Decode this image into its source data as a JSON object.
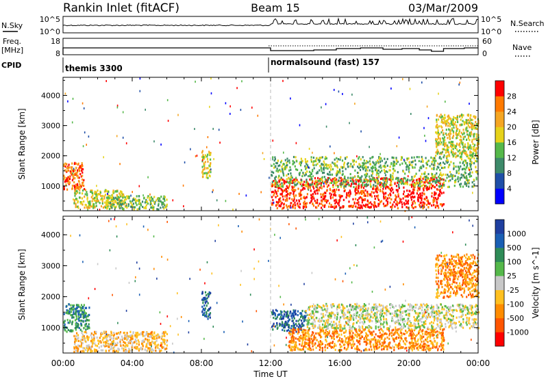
{
  "header": {
    "station": "Rankin Inlet (fitACF)",
    "beam": "Beam 15",
    "date": "03/Mar/2009"
  },
  "top_panels": {
    "nsky_label": "N.Sky",
    "nsky_ticks": [
      "10^5",
      "10^0"
    ],
    "nsearch_label": "N.Search",
    "nsearch_ticks": [
      "10^5",
      "10^0"
    ],
    "freq_label": "Freq.",
    "freq_unit": "[MHz]",
    "freq_ticks": [
      "18",
      "8"
    ],
    "nave_label": "Nave",
    "nave_ticks": [
      "60",
      "0"
    ],
    "cpid_label": "CPID",
    "cpid_modes": [
      {
        "label": "themis 3300",
        "start_hour": 0
      },
      {
        "label": "normalsound (fast) 157",
        "start_hour": 12
      }
    ]
  },
  "colors": {
    "power_scale": [
      "#0000ff",
      "#1f4fa8",
      "#3d8a6a",
      "#55b84a",
      "#e6d21a",
      "#f5a623",
      "#ff7a00",
      "#ff0000"
    ],
    "velocity_scale": [
      "#ff0000",
      "#ff5500",
      "#ff8c00",
      "#ffc020",
      "#c8c8c8",
      "#55b84a",
      "#2e8b57",
      "#1a5fb4",
      "#1f3fa0"
    ]
  },
  "chart_data": [
    {
      "type": "heatmap",
      "name_hint": "power",
      "xlabel": "",
      "ylabel": "Slant Range [km]",
      "x_range_hours": [
        0,
        24
      ],
      "ylim": [
        180,
        4600
      ],
      "y_ticks": [
        1000,
        2000,
        3000,
        4000
      ],
      "x_tick_labels": [
        "00:00",
        "04:00",
        "08:00",
        "12:00",
        "16:00",
        "20:00",
        "00:00"
      ],
      "colorbar_label": "Power [dB]",
      "colorbar_ticks": [
        "28",
        "24",
        "20",
        "16",
        "12",
        "8",
        "4"
      ],
      "echo_regions": [
        {
          "t0": 0.0,
          "t1": 1.2,
          "r0": 900,
          "r1": 1800,
          "level": 6
        },
        {
          "t0": 0.6,
          "t1": 3.5,
          "r0": 300,
          "r1": 900,
          "level": 4
        },
        {
          "t0": 2.5,
          "t1": 6.0,
          "r0": 250,
          "r1": 700,
          "level": 3
        },
        {
          "t0": 8.0,
          "t1": 8.5,
          "r0": 1300,
          "r1": 2200,
          "level": 4
        },
        {
          "t0": 12.0,
          "t1": 22.0,
          "r0": 300,
          "r1": 1300,
          "level": 7
        },
        {
          "t0": 12.0,
          "t1": 24.0,
          "r0": 1000,
          "r1": 2000,
          "level": 3
        },
        {
          "t0": 21.5,
          "t1": 24.0,
          "r0": 2000,
          "r1": 3400,
          "level": 4
        }
      ]
    },
    {
      "type": "heatmap",
      "name_hint": "velocity",
      "xlabel": "Time UT",
      "ylabel": "Slant Range [km]",
      "x_range_hours": [
        0,
        24
      ],
      "ylim": [
        180,
        4600
      ],
      "y_ticks": [
        1000,
        2000,
        3000,
        4000
      ],
      "x_tick_labels": [
        "00:00",
        "04:00",
        "08:00",
        "12:00",
        "16:00",
        "20:00",
        "00:00"
      ],
      "colorbar_label": "Velocity [m s^-1]",
      "colorbar_ticks": [
        "1000",
        "500",
        "100",
        "25",
        "-25",
        "-100",
        "-500",
        "-1000"
      ],
      "echo_regions": [
        {
          "t0": 0.0,
          "t1": 1.5,
          "r0": 900,
          "r1": 1800,
          "level": 6
        },
        {
          "t0": 0.6,
          "t1": 6.0,
          "r0": 250,
          "r1": 900,
          "level": 3
        },
        {
          "t0": 8.0,
          "t1": 8.5,
          "r0": 1300,
          "r1": 2200,
          "level": 7
        },
        {
          "t0": 12.0,
          "t1": 14.0,
          "r0": 900,
          "r1": 1600,
          "level": 7
        },
        {
          "t0": 13.0,
          "t1": 22.0,
          "r0": 300,
          "r1": 1000,
          "level": 2
        },
        {
          "t0": 14.0,
          "t1": 24.0,
          "r0": 1000,
          "r1": 1800,
          "level": 4
        },
        {
          "t0": 21.5,
          "t1": 24.0,
          "r0": 2000,
          "r1": 3400,
          "level": 2
        }
      ]
    }
  ]
}
